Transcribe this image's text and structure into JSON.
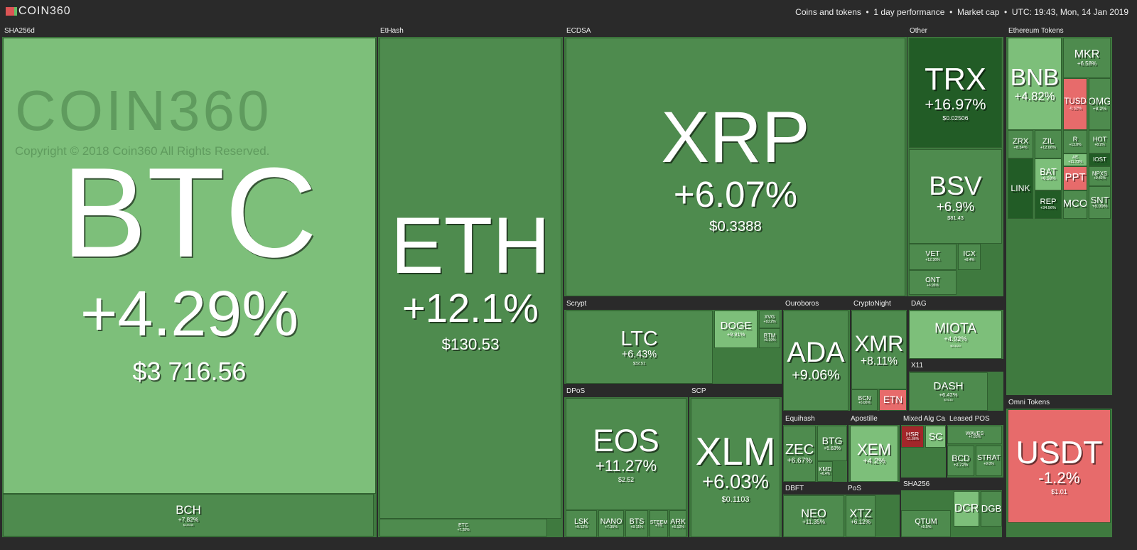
{
  "header": {
    "logo": "COIN360",
    "info": "Coins and tokens  •  1 day performance  •  Market cap  •  UTC: 19:43, Mon, 14 Jan 2019"
  },
  "watermark": {
    "logo": "COIN360",
    "copyright": "Copyright © 2018 Coin360 All Rights Reserved."
  },
  "groups": [
    {
      "name": "SHA256d",
      "tiles": [
        {
          "symbol": "BTC",
          "change": "+4.29%",
          "price": "$3 716.56",
          "color": "#7dbf7a"
        },
        {
          "symbol": "BCH",
          "change": "+7.82%",
          "price": "$134.55",
          "color": "#4e8b4e"
        }
      ]
    },
    {
      "name": "EtHash",
      "tiles": [
        {
          "symbol": "ETH",
          "change": "+12.1%",
          "price": "$130.53",
          "color": "#4e8b4e"
        },
        {
          "symbol": "ETC",
          "change": "+7.28%",
          "color": "#4e8b4e"
        }
      ]
    },
    {
      "name": "ECDSA",
      "tiles": [
        {
          "symbol": "XRP",
          "change": "+6.07%",
          "price": "$0.3388",
          "color": "#4e8b4e"
        }
      ]
    },
    {
      "name": "Other",
      "tiles": [
        {
          "symbol": "TRX",
          "change": "+16.97%",
          "price": "$0.02506",
          "color": "#225c26"
        },
        {
          "symbol": "BSV",
          "change": "+6.9%",
          "price": "$81.43",
          "color": "#4e8b4e"
        },
        {
          "symbol": "VET",
          "change": "+12.36%",
          "color": "#4e8b4e"
        },
        {
          "symbol": "ONT",
          "change": "+6.96%",
          "color": "#4e8b4e"
        },
        {
          "symbol": "ICX",
          "change": "+8.4%",
          "color": "#4e8b4e"
        }
      ]
    },
    {
      "name": "Ethereum Tokens",
      "tiles": [
        {
          "symbol": "BNB",
          "change": "+4.82%",
          "color": "#7dbf7a"
        },
        {
          "symbol": "MKR",
          "change": "+6.58%",
          "color": "#4e8b4e"
        },
        {
          "symbol": "TUSD",
          "change": "-0.32%",
          "color": "#e76b6b"
        },
        {
          "symbol": "OMG",
          "change": "+8.2%",
          "color": "#4e8b4e"
        },
        {
          "symbol": "ZRX",
          "change": "+8.34%",
          "color": "#4e8b4e"
        },
        {
          "symbol": "ZIL",
          "change": "+12.06%",
          "color": "#4e8b4e"
        },
        {
          "symbol": "R",
          "change": "+13.8%",
          "color": "#4e8b4e"
        },
        {
          "symbol": "HOT",
          "change": "+8.2%",
          "color": "#4e8b4e"
        },
        {
          "symbol": "AE",
          "change": "+11.73%",
          "color": "#7dbf7a"
        },
        {
          "symbol": "BAT",
          "change": "+6.58%",
          "color": "#7dbf7a"
        },
        {
          "symbol": "LINK",
          "color": "#225c26"
        },
        {
          "symbol": "REP",
          "change": "+34.56%",
          "color": "#225c26"
        },
        {
          "symbol": "PPT",
          "color": "#e76b6b"
        },
        {
          "symbol": "MCO",
          "color": "#4e8b4e"
        },
        {
          "symbol": "NPXS",
          "change": "+9.42%",
          "color": "#4e8b4e"
        },
        {
          "symbol": "IOST",
          "color": "#225c26"
        },
        {
          "symbol": "SNT",
          "change": "+8.09%",
          "color": "#4e8b4e"
        }
      ]
    },
    {
      "name": "Scrypt",
      "tiles": [
        {
          "symbol": "LTC",
          "change": "+6.43%",
          "price": "$32.51",
          "color": "#4e8b4e"
        },
        {
          "symbol": "DOGE",
          "change": "+9.91%",
          "color": "#7dbf7a"
        },
        {
          "symbol": "XVG",
          "change": "+10.2%",
          "color": "#4e8b4e"
        },
        {
          "symbol": "BTM",
          "change": "+6.19%",
          "color": "#4e8b4e"
        }
      ]
    },
    {
      "name": "Ouroboros",
      "tiles": [
        {
          "symbol": "ADA",
          "change": "+9.06%",
          "color": "#4e8b4e"
        }
      ]
    },
    {
      "name": "CryptoNight",
      "tiles": [
        {
          "symbol": "XMR",
          "change": "+8.11%",
          "color": "#4e8b4e"
        },
        {
          "symbol": "BCN",
          "change": "+5.06%",
          "color": "#4e8b4e"
        },
        {
          "symbol": "ETN",
          "color": "#e76b6b"
        }
      ]
    },
    {
      "name": "DAG",
      "tiles": [
        {
          "symbol": "MIOTA",
          "change": "+4.92%",
          "price": "$0.3120",
          "color": "#7dbf7a"
        }
      ]
    },
    {
      "name": "X11",
      "tiles": [
        {
          "symbol": "DASH",
          "change": "+6.42%",
          "price": "$74.33",
          "color": "#4e8b4e"
        }
      ]
    },
    {
      "name": "DPoS",
      "tiles": [
        {
          "symbol": "EOS",
          "change": "+11.27%",
          "price": "$2.52",
          "color": "#4e8b4e"
        },
        {
          "symbol": "LSK",
          "change": "+9.12%",
          "color": "#4e8b4e"
        },
        {
          "symbol": "NANO",
          "change": "+7.35%",
          "color": "#4e8b4e"
        },
        {
          "symbol": "BTS",
          "change": "+8.11%",
          "color": "#4e8b4e"
        },
        {
          "symbol": "STEEM",
          "change": "+7%",
          "color": "#4e8b4e"
        },
        {
          "symbol": "ARK",
          "change": "+6.12%",
          "color": "#4e8b4e"
        }
      ]
    },
    {
      "name": "SCP",
      "tiles": [
        {
          "symbol": "XLM",
          "change": "+6.03%",
          "price": "$0.1103",
          "color": "#4e8b4e"
        }
      ]
    },
    {
      "name": "Equihash",
      "tiles": [
        {
          "symbol": "ZEC",
          "change": "+6.67%",
          "color": "#4e8b4e"
        },
        {
          "symbol": "BTG",
          "change": "+5.63%",
          "color": "#4e8b4e"
        },
        {
          "symbol": "KMD",
          "change": "+6.4%",
          "color": "#4e8b4e"
        }
      ]
    },
    {
      "name": "Apostille",
      "tiles": [
        {
          "symbol": "XEM",
          "change": "+4.2%",
          "color": "#7dbf7a"
        }
      ]
    },
    {
      "name": "Mixed Alg Ca...",
      "tiles": [
        {
          "symbol": "HSR",
          "change": "-11.66%",
          "color": "#a3262a"
        },
        {
          "symbol": "SC",
          "color": "#7dbf7a"
        }
      ]
    },
    {
      "name": "Leased POS",
      "tiles": [
        {
          "symbol": "WAVES",
          "change": "+7.83%",
          "color": "#4e8b4e"
        },
        {
          "symbol": "BCD",
          "change": "+2.72%",
          "color": "#4e8b4e"
        },
        {
          "symbol": "STRAT",
          "change": "+9.0%",
          "color": "#4e8b4e"
        }
      ]
    },
    {
      "name": "DBFT",
      "tiles": [
        {
          "symbol": "NEO",
          "change": "+11.35%",
          "color": "#4e8b4e"
        }
      ]
    },
    {
      "name": "PoS",
      "tiles": [
        {
          "symbol": "XTZ",
          "change": "+6.12%",
          "color": "#4e8b4e"
        }
      ]
    },
    {
      "name": "SHA256",
      "tiles": [
        {
          "symbol": "QTUM",
          "change": "+5.5%",
          "color": "#4e8b4e"
        },
        {
          "symbol": "DCR",
          "color": "#7dbf7a"
        },
        {
          "symbol": "DGB",
          "color": "#4e8b4e"
        }
      ]
    },
    {
      "name": "Omni Tokens",
      "tiles": [
        {
          "symbol": "USDT",
          "change": "-1.2%",
          "price": "$1.01",
          "color": "#e76b6b"
        }
      ]
    }
  ]
}
